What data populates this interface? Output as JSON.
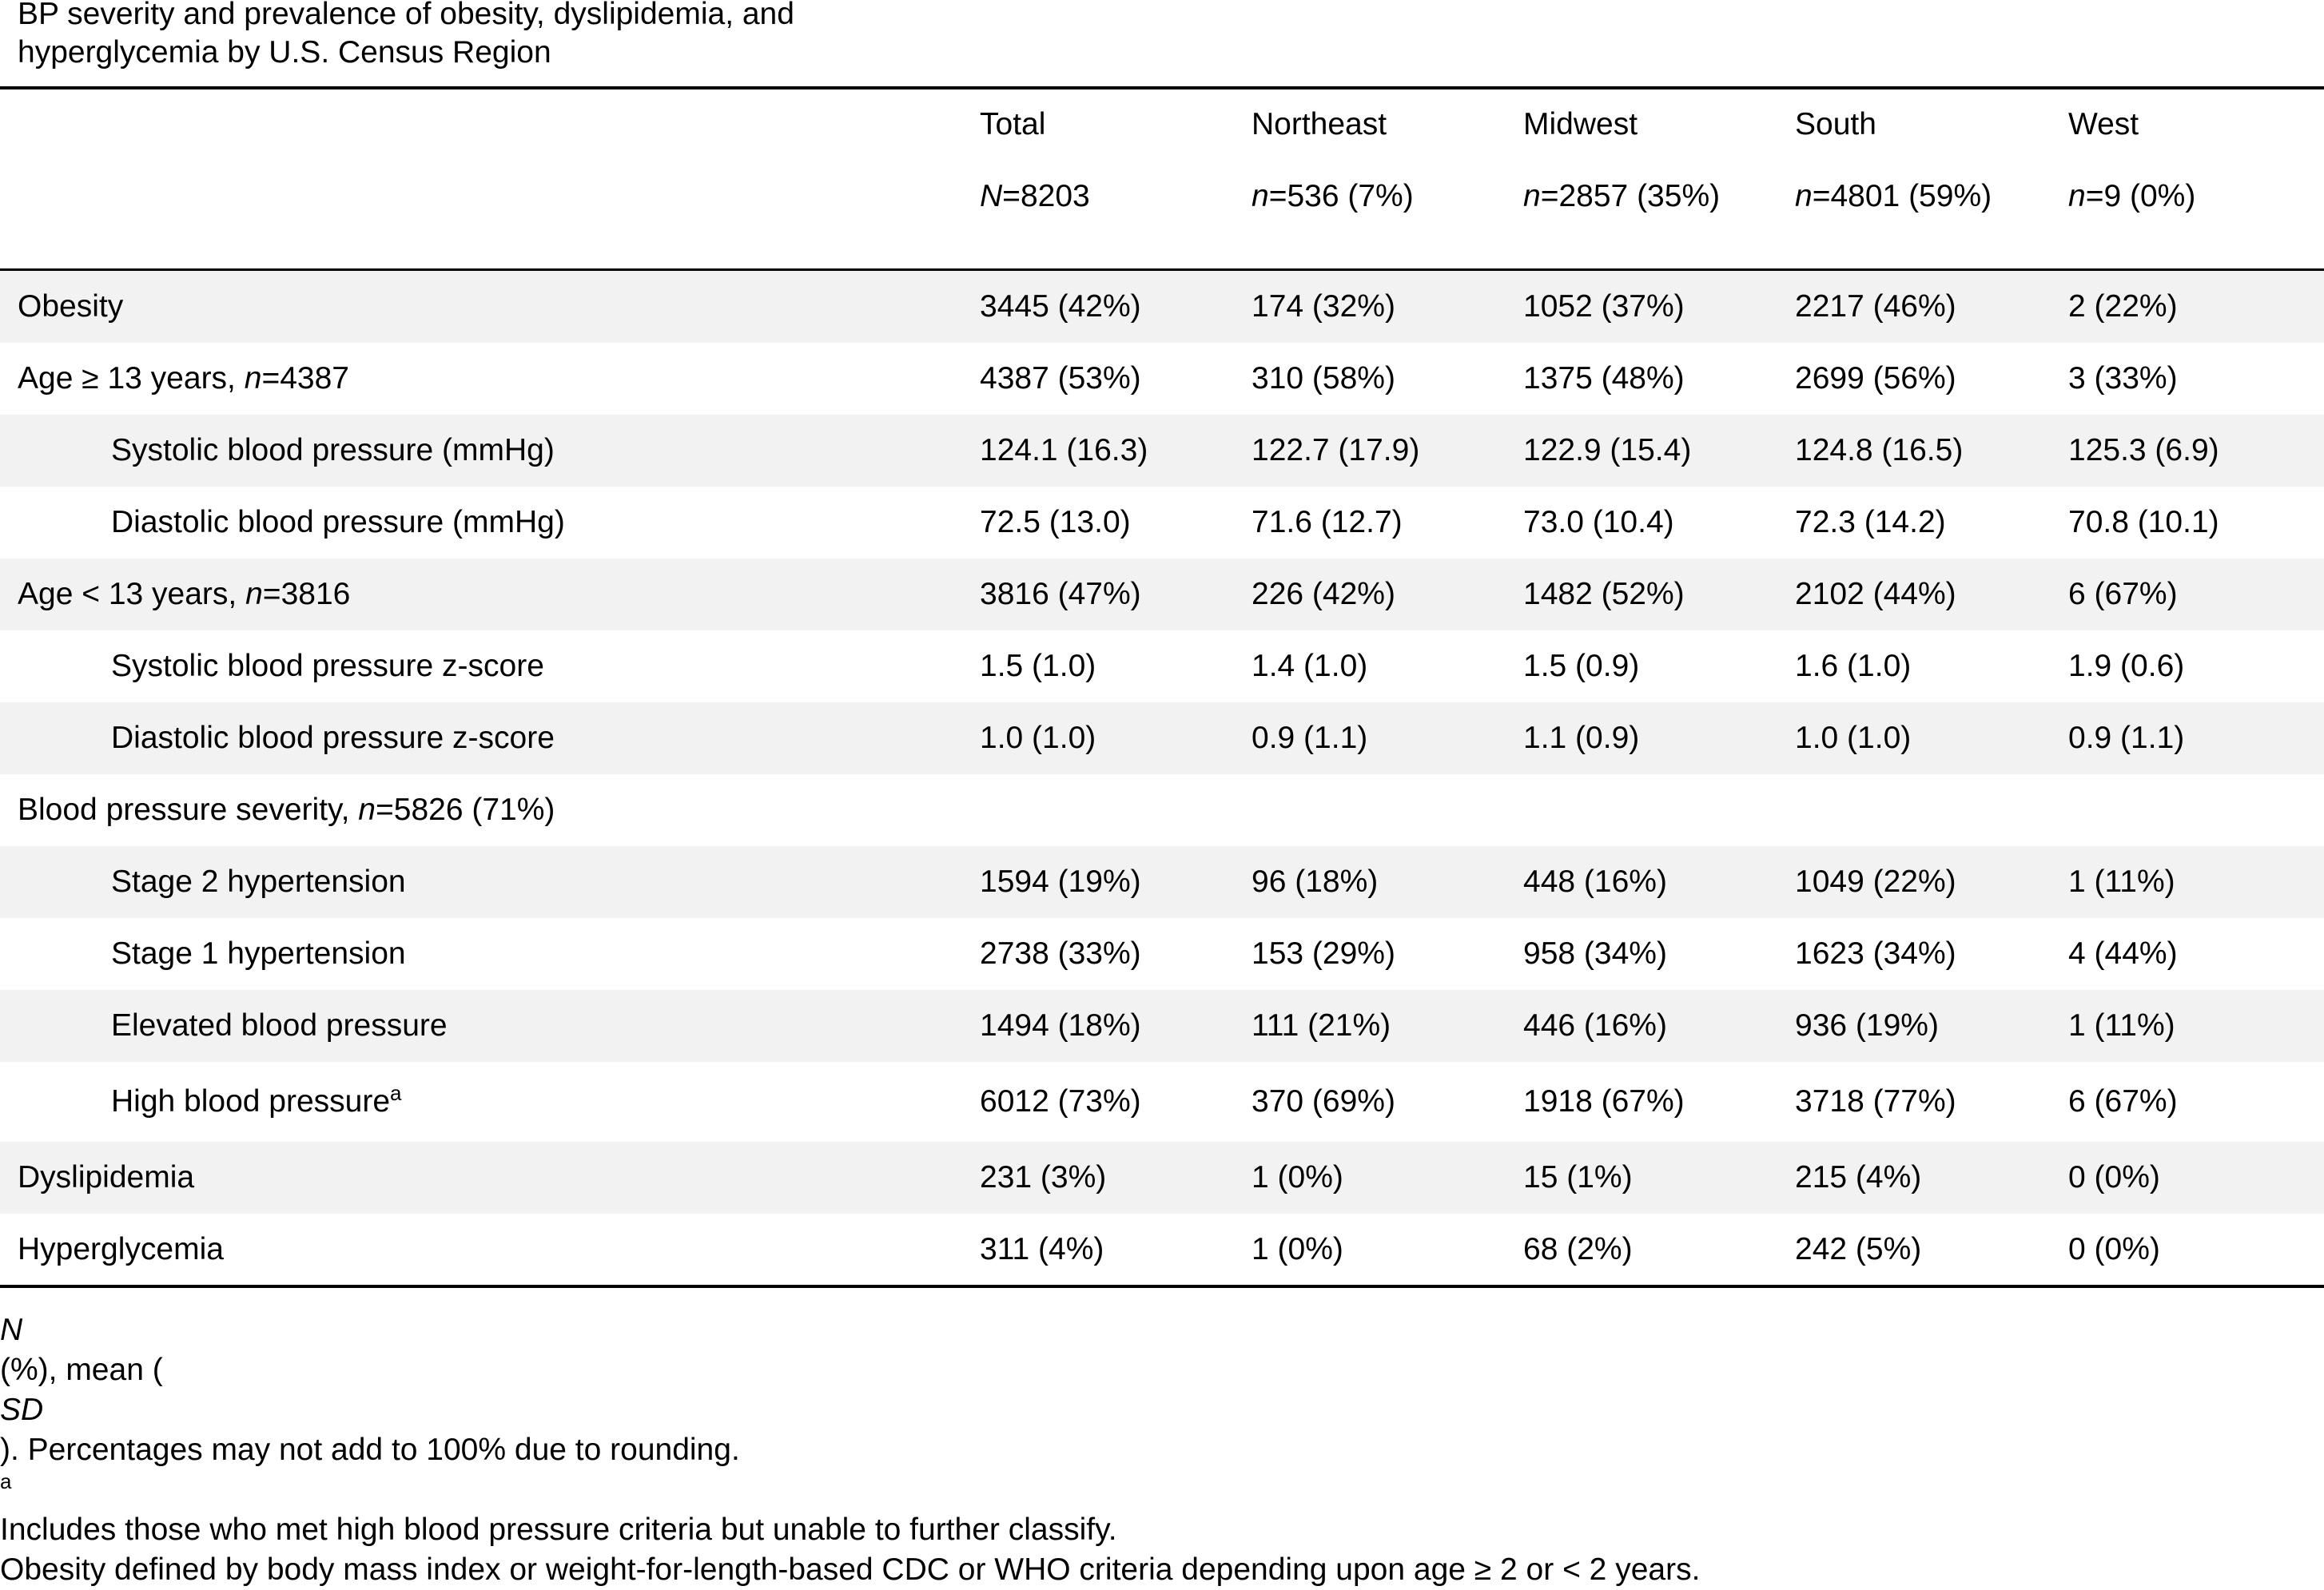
{
  "title": {
    "line1": "BP severity and prevalence of obesity, dyslipidemia, and",
    "line2": "hyperglycemia by U.S. Census Region"
  },
  "header": {
    "columns": [
      {
        "name": "Total",
        "n_label": "N",
        "n_value": "=8203"
      },
      {
        "name": "Northeast",
        "n_label": "n",
        "n_value": "=536 (7%)"
      },
      {
        "name": "Midwest",
        "n_label": "n",
        "n_value": "=2857 (35%)"
      },
      {
        "name": "South",
        "n_label": "n",
        "n_value": "=4801 (59%)"
      },
      {
        "name": "West",
        "n_label": "n",
        "n_value": "=9 (0%)"
      }
    ]
  },
  "rows": [
    {
      "label": "Obesity",
      "label_n": "",
      "label_tail": "",
      "sup": "",
      "indent": false,
      "shaded": true,
      "values": [
        "3445 (42%)",
        "174 (32%)",
        "1052 (37%)",
        "2217 (46%)",
        "2 (22%)"
      ]
    },
    {
      "label": "Age ≥ 13 years, ",
      "label_n": "n",
      "label_tail": "=4387",
      "sup": "",
      "indent": false,
      "shaded": false,
      "values": [
        "4387 (53%)",
        "310 (58%)",
        "1375 (48%)",
        "2699 (56%)",
        "3 (33%)"
      ]
    },
    {
      "label": "Systolic blood pressure (mmHg)",
      "label_n": "",
      "label_tail": "",
      "sup": "",
      "indent": true,
      "shaded": true,
      "values": [
        "124.1 (16.3)",
        "122.7 (17.9)",
        "122.9 (15.4)",
        "124.8 (16.5)",
        "125.3 (6.9)"
      ]
    },
    {
      "label": "Diastolic blood pressure (mmHg)",
      "label_n": "",
      "label_tail": "",
      "sup": "",
      "indent": true,
      "shaded": false,
      "values": [
        "72.5 (13.0)",
        "71.6 (12.7)",
        "73.0 (10.4)",
        "72.3 (14.2)",
        "70.8 (10.1)"
      ]
    },
    {
      "label": "Age < 13 years, ",
      "label_n": "n",
      "label_tail": "=3816",
      "sup": "",
      "indent": false,
      "shaded": true,
      "values": [
        "3816 (47%)",
        "226 (42%)",
        "1482 (52%)",
        "2102 (44%)",
        "6 (67%)"
      ]
    },
    {
      "label": "Systolic blood pressure z-score",
      "label_n": "",
      "label_tail": "",
      "sup": "",
      "indent": true,
      "shaded": false,
      "values": [
        "1.5 (1.0)",
        "1.4 (1.0)",
        "1.5 (0.9)",
        "1.6 (1.0)",
        "1.9 (0.6)"
      ]
    },
    {
      "label": "Diastolic blood pressure z-score",
      "label_n": "",
      "label_tail": "",
      "sup": "",
      "indent": true,
      "shaded": true,
      "values": [
        "1.0 (1.0)",
        "0.9 (1.1)",
        "1.1 (0.9)",
        "1.0 (1.0)",
        "0.9 (1.1)"
      ]
    },
    {
      "label": "Blood pressure severity, ",
      "label_n": "n",
      "label_tail": "=5826 (71%)",
      "sup": "",
      "indent": false,
      "shaded": false,
      "values": [
        "",
        "",
        "",
        "",
        ""
      ]
    },
    {
      "label": "Stage 2 hypertension",
      "label_n": "",
      "label_tail": "",
      "sup": "",
      "indent": true,
      "shaded": true,
      "values": [
        "1594 (19%)",
        "96 (18%)",
        "448 (16%)",
        "1049 (22%)",
        "1 (11%)"
      ]
    },
    {
      "label": "Stage 1 hypertension",
      "label_n": "",
      "label_tail": "",
      "sup": "",
      "indent": true,
      "shaded": false,
      "values": [
        "2738 (33%)",
        "153 (29%)",
        "958 (34%)",
        "1623 (34%)",
        "4 (44%)"
      ]
    },
    {
      "label": "Elevated blood pressure",
      "label_n": "",
      "label_tail": "",
      "sup": "",
      "indent": true,
      "shaded": true,
      "values": [
        "1494 (18%)",
        "111 (21%)",
        "446 (16%)",
        "936 (19%)",
        "1 (11%)"
      ]
    },
    {
      "label": "High blood pressure",
      "label_n": "",
      "label_tail": "",
      "sup": "a",
      "indent": true,
      "shaded": false,
      "values": [
        "6012 (73%)",
        "370 (69%)",
        "1918 (67%)",
        "3718 (77%)",
        "6 (67%)"
      ]
    },
    {
      "label": "Dyslipidemia",
      "label_n": "",
      "label_tail": "",
      "sup": "",
      "indent": false,
      "shaded": true,
      "values": [
        "231 (3%)",
        "1 (0%)",
        "15 (1%)",
        "215 (4%)",
        "0 (0%)"
      ]
    },
    {
      "label": "Hyperglycemia",
      "label_n": "",
      "label_tail": "",
      "sup": "",
      "indent": false,
      "shaded": false,
      "values": [
        "311 (4%)",
        "1 (0%)",
        "68 (2%)",
        "242 (5%)",
        "0 (0%)"
      ]
    }
  ],
  "footnote": {
    "n_symbol": "N",
    "part1": " (%), mean (",
    "sd_symbol": "SD",
    "part2": "). Percentages may not add to 100% due to rounding. ",
    "sup": "a",
    "part3": "Includes those who met high blood pressure criteria but unable to further classify.",
    "line2": "Obesity defined by body mass index or weight-for-length-based CDC or WHO criteria depending upon age ≥ 2 or < 2 years."
  },
  "colors": {
    "shaded_row": "#f2f2f2",
    "rule": "#000000",
    "text": "#000000"
  }
}
